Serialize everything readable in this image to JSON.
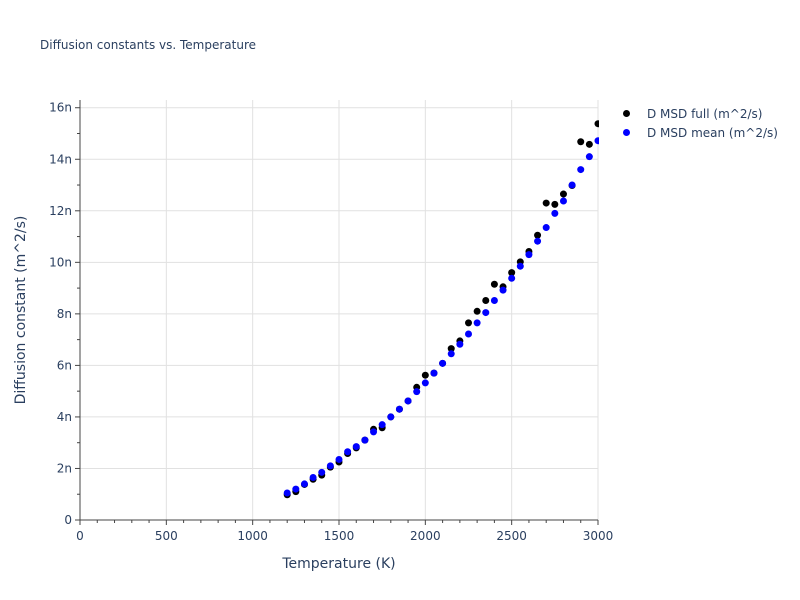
{
  "chart_data": {
    "type": "scatter",
    "title": "Diffusion constants vs. Temperature",
    "xlabel": "Temperature (K)",
    "ylabel": "Diffusion constant (m^2/s)",
    "xlim": [
      0,
      3000
    ],
    "ylim": [
      -1e-16,
      1.63e-08
    ],
    "xticks": [
      0,
      500,
      1000,
      1500,
      2000,
      2500,
      3000
    ],
    "xtick_labels": [
      "0",
      "500",
      "1000",
      "1500",
      "2000",
      "2500",
      "3000"
    ],
    "yticks": [
      0,
      2e-09,
      4e-09,
      6e-09,
      8e-09,
      1e-08,
      1.2e-08,
      1.4e-08,
      1.6e-08
    ],
    "ytick_labels": [
      "0",
      "2n",
      "4n",
      "6n",
      "8n",
      "10n",
      "12n",
      "14n",
      "16n"
    ],
    "grid": true,
    "legend_position": "top-right, outside plot",
    "x": [
      1200,
      1250,
      1300,
      1350,
      1400,
      1450,
      1500,
      1550,
      1600,
      1650,
      1700,
      1750,
      1800,
      1850,
      1900,
      1950,
      2000,
      2050,
      2100,
      2150,
      2200,
      2250,
      2300,
      2350,
      2400,
      2450,
      2500,
      2550,
      2600,
      2650,
      2700,
      2750,
      2800,
      2850,
      2900,
      2950,
      3000
    ],
    "series": [
      {
        "name": "D MSD full (m^2/s)",
        "color": "#000000",
        "values": [
          9.8e-10,
          1.1e-09,
          1.38e-09,
          1.58e-09,
          1.74e-09,
          2.05e-09,
          2.25e-09,
          2.58e-09,
          2.8e-09,
          3.1e-09,
          3.52e-09,
          3.58e-09,
          4e-09,
          4.3e-09,
          4.62e-09,
          5.15e-09,
          5.62e-09,
          5.7e-09,
          6.08e-09,
          6.65e-09,
          6.95e-09,
          7.65e-09,
          8.1e-09,
          8.52e-09,
          9.15e-09,
          9.05e-09,
          9.6e-09,
          1.002e-08,
          1.042e-08,
          1.105e-08,
          1.23e-08,
          1.225e-08,
          1.265e-08,
          1.298e-08,
          1.468e-08,
          1.458e-08,
          1.538e-08
        ]
      },
      {
        "name": "D MSD mean (m^2/s)",
        "color": "#0000ff",
        "values": [
          1.05e-09,
          1.2e-09,
          1.4e-09,
          1.65e-09,
          1.85e-09,
          2.1e-09,
          2.35e-09,
          2.65e-09,
          2.85e-09,
          3.1e-09,
          3.42e-09,
          3.7e-09,
          4e-09,
          4.3e-09,
          4.62e-09,
          4.98e-09,
          5.32e-09,
          5.7e-09,
          6.08e-09,
          6.45e-09,
          6.82e-09,
          7.22e-09,
          7.65e-09,
          8.05e-09,
          8.52e-09,
          8.92e-09,
          9.38e-09,
          9.85e-09,
          1.03e-08,
          1.082e-08,
          1.135e-08,
          1.19e-08,
          1.238e-08,
          1.3e-08,
          1.36e-08,
          1.41e-08,
          1.472e-08
        ]
      }
    ]
  }
}
